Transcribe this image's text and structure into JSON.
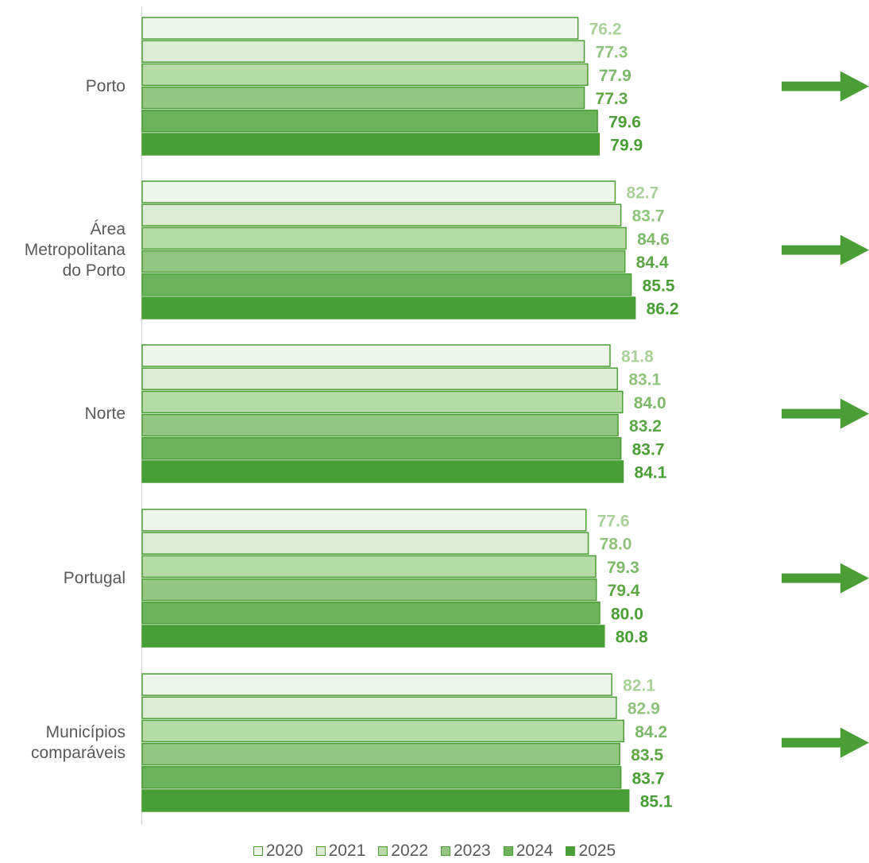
{
  "chart_data": {
    "type": "bar",
    "orientation": "horizontal",
    "categories": [
      [
        "Porto"
      ],
      [
        "Área",
        "Metropolitana",
        "do Porto"
      ],
      [
        "Norte"
      ],
      [
        "Portugal"
      ],
      [
        "Municípios",
        "comparáveis"
      ]
    ],
    "series": [
      {
        "name": "2020",
        "values": [
          76.2,
          82.7,
          81.8,
          77.6,
          82.1
        ],
        "fill": "#eef5ea",
        "label_color": "#a9d199",
        "label_weight": "bold"
      },
      {
        "name": "2021",
        "values": [
          77.3,
          83.7,
          83.1,
          78.0,
          82.9
        ],
        "fill": "#dcecd4",
        "label_color": "#8fc47d",
        "label_weight": "bold"
      },
      {
        "name": "2022",
        "values": [
          77.9,
          84.6,
          84.0,
          79.3,
          84.2
        ],
        "fill": "#b7dba8",
        "label_color": "#7db96a",
        "label_weight": "bold"
      },
      {
        "name": "2023",
        "values": [
          77.3,
          84.4,
          83.2,
          79.4,
          83.5
        ],
        "fill": "#93c683",
        "label_color": "#5ca646",
        "label_weight": "bold"
      },
      {
        "name": "2024",
        "values": [
          79.6,
          85.5,
          83.7,
          80.0,
          83.7
        ],
        "fill": "#6cb25a",
        "label_color": "#4a9e35",
        "label_weight": "bold"
      },
      {
        "name": "2025",
        "values": [
          79.9,
          86.2,
          84.1,
          80.8,
          85.1
        ],
        "fill": "#479e35",
        "label_color": "#479e35",
        "label_weight": "bold"
      }
    ],
    "xlim": [
      0,
      100
    ],
    "legend_position": "bottom",
    "grid": false,
    "trend_markers": [
      "arrow-right",
      "arrow-right",
      "arrow-right",
      "arrow-right",
      "arrow-right"
    ],
    "colors": {
      "border": "#4a9e35",
      "arrow": "#4a9e35",
      "axis": "#d9d9d9",
      "text": "#595959"
    }
  }
}
